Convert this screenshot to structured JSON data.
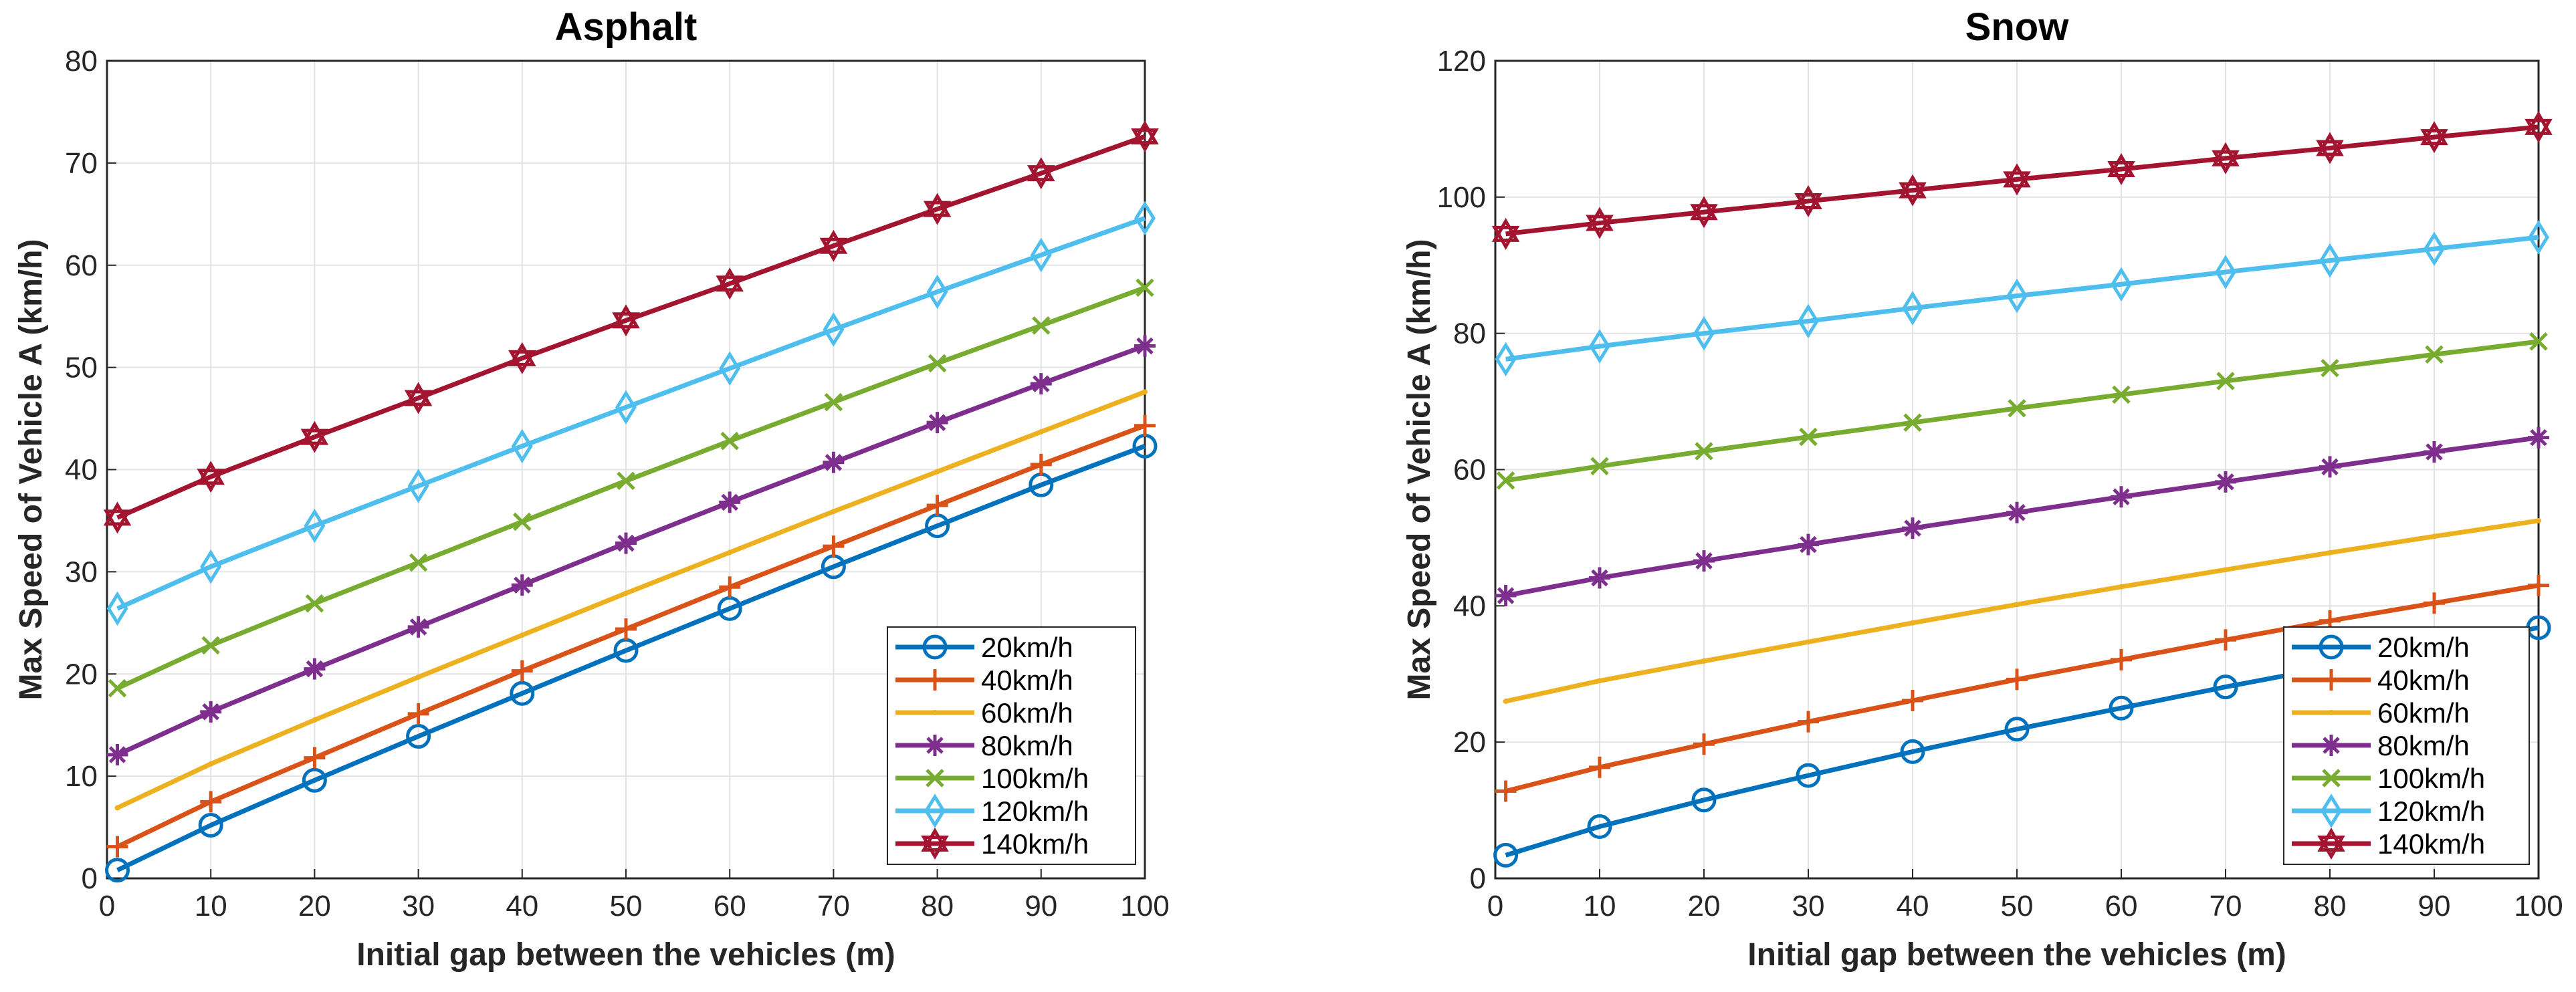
{
  "chart_data": [
    {
      "type": "line",
      "title": "Asphalt",
      "xlabel": "Initial gap between the vehicles (m)",
      "ylabel": "Max Speed of Vehicle A (km/h)",
      "xlim": [
        0,
        100
      ],
      "ylim": [
        0,
        80
      ],
      "xticks": [
        0,
        10,
        20,
        30,
        40,
        50,
        60,
        70,
        80,
        90,
        100
      ],
      "yticks": [
        0,
        10,
        20,
        30,
        40,
        50,
        60,
        70,
        80
      ],
      "grid": true,
      "legend_position": "bottom-right",
      "x": [
        1,
        10,
        20,
        30,
        40,
        50,
        60,
        70,
        80,
        90,
        100
      ],
      "series": [
        {
          "name": "20km/h",
          "color": "#0072BD",
          "marker": "circle",
          "values": [
            0.8,
            5.2,
            9.6,
            13.9,
            18.1,
            22.3,
            26.4,
            30.5,
            34.5,
            38.5,
            42.3
          ]
        },
        {
          "name": "40km/h",
          "color": "#D95319",
          "marker": "plus",
          "values": [
            3.1,
            7.5,
            11.8,
            16.1,
            20.3,
            24.4,
            28.5,
            32.5,
            36.5,
            40.5,
            44.3
          ]
        },
        {
          "name": "60km/h",
          "color": "#EDB120",
          "marker": "point",
          "values": [
            6.9,
            11.2,
            15.5,
            19.7,
            23.8,
            27.9,
            31.9,
            35.9,
            39.8,
            43.7,
            47.6
          ]
        },
        {
          "name": "80km/h",
          "color": "#7E2F8E",
          "marker": "asterisk",
          "values": [
            12.1,
            16.3,
            20.5,
            24.6,
            28.7,
            32.8,
            36.8,
            40.7,
            44.6,
            48.4,
            52.1
          ]
        },
        {
          "name": "100km/h",
          "color": "#77AC30",
          "marker": "x",
          "values": [
            18.6,
            22.8,
            26.9,
            30.9,
            34.9,
            38.9,
            42.8,
            46.6,
            50.4,
            54.1,
            57.8
          ]
        },
        {
          "name": "120km/h",
          "color": "#4DBEEE",
          "marker": "diamond",
          "values": [
            26.4,
            30.5,
            34.5,
            38.4,
            42.3,
            46.1,
            49.9,
            53.7,
            57.4,
            61.0,
            64.6
          ]
        },
        {
          "name": "140km/h",
          "color": "#A2142F",
          "marker": "hexagram",
          "values": [
            35.3,
            39.3,
            43.2,
            47.0,
            50.9,
            54.6,
            58.2,
            61.9,
            65.5,
            69.0,
            72.6
          ]
        }
      ]
    },
    {
      "type": "line",
      "title": "Snow",
      "xlabel": "Initial gap between the vehicles (m)",
      "ylabel": "Max Speed of Vehicle A (km/h)",
      "xlim": [
        0,
        100
      ],
      "ylim": [
        0,
        120
      ],
      "xticks": [
        0,
        10,
        20,
        30,
        40,
        50,
        60,
        70,
        80,
        90,
        100
      ],
      "yticks": [
        0,
        20,
        40,
        60,
        80,
        100,
        120
      ],
      "grid": true,
      "legend_position": "bottom-right",
      "x": [
        1,
        10,
        20,
        30,
        40,
        50,
        60,
        70,
        80,
        90,
        100
      ],
      "series": [
        {
          "name": "20km/h",
          "color": "#0072BD",
          "marker": "circle",
          "values": [
            3.4,
            7.6,
            11.5,
            15.1,
            18.6,
            21.9,
            25.0,
            28.1,
            31.0,
            33.9,
            36.8
          ]
        },
        {
          "name": "40km/h",
          "color": "#D95319",
          "marker": "plus",
          "values": [
            12.8,
            16.3,
            19.7,
            23.0,
            26.1,
            29.2,
            32.1,
            35.0,
            37.8,
            40.4,
            43.0
          ]
        },
        {
          "name": "60km/h",
          "color": "#EDB120",
          "marker": "point",
          "values": [
            26.0,
            29.0,
            31.9,
            34.7,
            37.5,
            40.2,
            42.8,
            45.3,
            47.8,
            50.2,
            52.5
          ]
        },
        {
          "name": "80km/h",
          "color": "#7E2F8E",
          "marker": "asterisk",
          "values": [
            41.5,
            44.1,
            46.6,
            49.0,
            51.4,
            53.7,
            56.0,
            58.2,
            60.4,
            62.6,
            64.7
          ]
        },
        {
          "name": "100km/h",
          "color": "#77AC30",
          "marker": "x",
          "values": [
            58.4,
            60.5,
            62.7,
            64.8,
            66.9,
            69.0,
            71.0,
            73.0,
            74.9,
            76.9,
            78.8
          ]
        },
        {
          "name": "120km/h",
          "color": "#4DBEEE",
          "marker": "diamond",
          "values": [
            76.2,
            78.1,
            80.0,
            81.8,
            83.7,
            85.5,
            87.2,
            89.0,
            90.7,
            92.4,
            94.1
          ]
        },
        {
          "name": "140km/h",
          "color": "#A2142F",
          "marker": "hexagram",
          "values": [
            94.6,
            96.2,
            97.8,
            99.4,
            101.0,
            102.6,
            104.1,
            105.7,
            107.2,
            108.8,
            110.3
          ]
        }
      ]
    }
  ]
}
